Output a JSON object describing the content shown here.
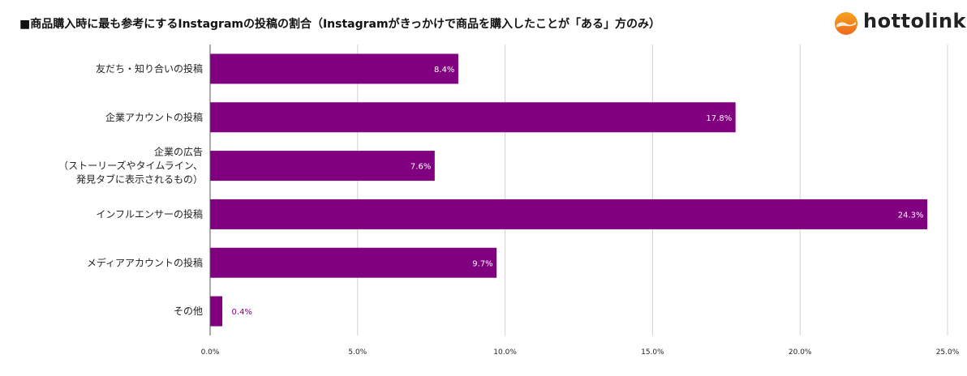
{
  "title": "■商品購入時に最も参考にするInstagramの投稿の割合（Instagramがきっかけで商品を購入したことが「ある」方のみ）",
  "logo": {
    "text": "hottolink",
    "icon": "hottolink-logo-icon"
  },
  "chart_data": {
    "type": "bar",
    "orientation": "horizontal",
    "title": "■商品購入時に最も参考にするInstagramの投稿の割合（Instagramがきっかけで商品を購入したことが「ある」方のみ）",
    "xlabel": "",
    "ylabel": "",
    "xlim": [
      0,
      25
    ],
    "x_ticks": [
      "0.0%",
      "5.0%",
      "10.0%",
      "15.0%",
      "20.0%",
      "25.0%"
    ],
    "x_tick_values": [
      0,
      5,
      10,
      15,
      20,
      25
    ],
    "grid": true,
    "bar_color": "#800080",
    "categories": [
      [
        "友だち・知り合いの投稿"
      ],
      [
        "企業アカウントの投稿"
      ],
      [
        "企業の広告",
        "（ストーリーズやタイムライン、",
        "発見タブに表示されるもの）"
      ],
      [
        "インフルエンサーの投稿"
      ],
      [
        "メディアアカウントの投稿"
      ],
      [
        "その他"
      ]
    ],
    "values": [
      8.4,
      17.8,
      7.6,
      24.3,
      9.7,
      0.4
    ],
    "data_labels": [
      "8.4%",
      "17.8%",
      "7.6%",
      "24.3%",
      "9.7%",
      "0.4%"
    ]
  }
}
